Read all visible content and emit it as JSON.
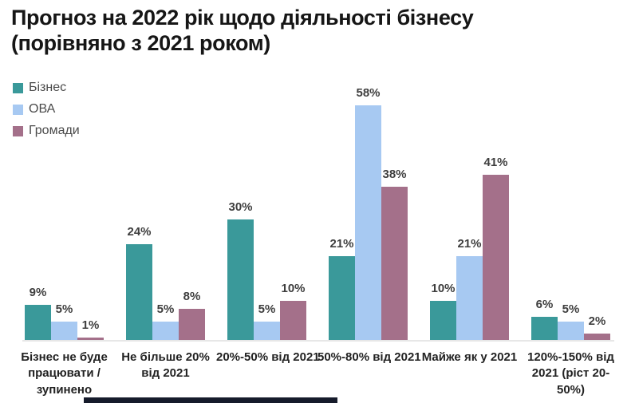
{
  "title": {
    "line1": "Прогноз на 2022 рік щодо діяльності бізнесу",
    "line2": "(порівняно з 2021 роком)"
  },
  "chart_data": {
    "type": "bar",
    "title": "Прогноз на 2022 рік щодо діяльності бізнесу (порівняно з 2021 роком)",
    "categories": [
      "Бізнес не буде працювати / зупинено",
      "Не більше 20% від 2021",
      "20%-50% від 2021",
      "50%-80% від 2021",
      "Майже як у 2021",
      "120%-150% від 2021 (ріст 20-50%)"
    ],
    "series": [
      {
        "name": "Бізнес",
        "color": "#3A999A",
        "values": [
          9,
          24,
          30,
          21,
          10,
          6
        ]
      },
      {
        "name": "ОВА",
        "color": "#A7C9F2",
        "values": [
          5,
          5,
          5,
          58,
          21,
          5
        ]
      },
      {
        "name": "Громади",
        "color": "#A4708A",
        "values": [
          1,
          8,
          10,
          38,
          41,
          2
        ]
      }
    ],
    "value_label_format": "{v}%",
    "xlabel": "",
    "ylabel": "",
    "ylim": [
      0,
      60
    ],
    "grid": false,
    "legend_position": "top-left"
  },
  "colors": {
    "title_text": "#161616",
    "legend_text": "#4a4a4a",
    "value_label_text": "#3e3e3e",
    "category_label_text": "#222222",
    "axis_line": "#e7e7e7",
    "background": "#ffffff",
    "bottom_strip": "#161B2B"
  }
}
